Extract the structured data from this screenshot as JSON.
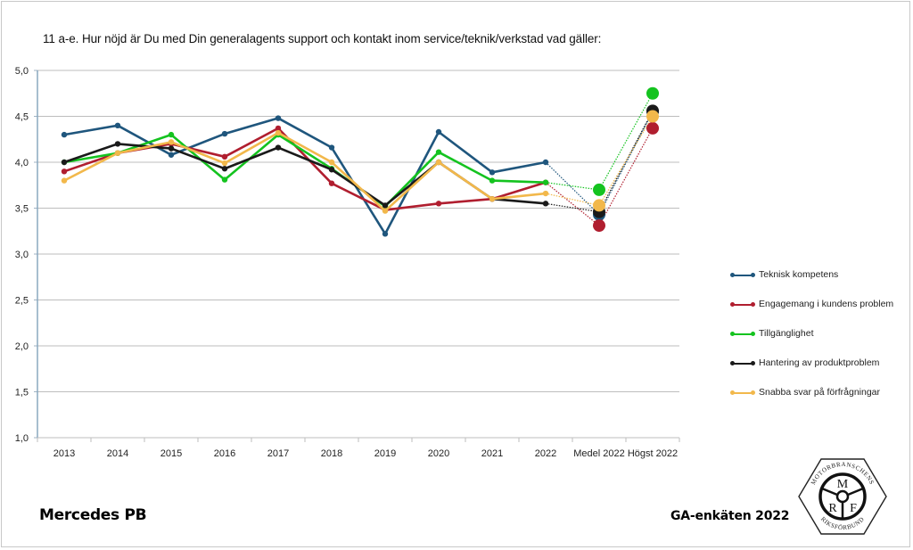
{
  "chart_data": {
    "type": "line",
    "title": "11 a-e. Hur nöjd är Du med Din generalagents support och kontakt inom service/teknik/verkstad vad gäller:",
    "xlabel": "",
    "ylabel": "",
    "ylim": [
      1.0,
      5.0
    ],
    "yticks": [
      "1,0",
      "1,5",
      "2,0",
      "2,5",
      "3,0",
      "3,5",
      "4,0",
      "4,5",
      "5,0"
    ],
    "ytick_values": [
      1.0,
      1.5,
      2.0,
      2.5,
      3.0,
      3.5,
      4.0,
      4.5,
      5.0
    ],
    "grid": "horizontal",
    "legend_position": "right",
    "categories": [
      "2013",
      "2014",
      "2015",
      "2016",
      "2017",
      "2018",
      "2019",
      "2020",
      "2021",
      "2022",
      "Medel 2022",
      "Högst 2022"
    ],
    "solid_categories": 10,
    "series": [
      {
        "name": "Teknisk kompetens",
        "color": "#1f567d",
        "values": [
          4.3,
          4.4,
          4.08,
          4.31,
          4.48,
          4.16,
          3.22,
          4.33,
          3.89,
          4.0,
          3.43,
          4.55
        ]
      },
      {
        "name": "Engagemang i kundens problem",
        "color": "#b01e2f",
        "values": [
          3.9,
          4.1,
          4.2,
          4.06,
          4.37,
          3.77,
          3.48,
          3.55,
          3.6,
          3.78,
          3.31,
          4.37
        ]
      },
      {
        "name": "Tillgänglighet",
        "color": "#14c31f",
        "values": [
          4.0,
          4.1,
          4.3,
          3.81,
          4.3,
          3.93,
          3.52,
          4.11,
          3.8,
          3.78,
          3.7,
          4.75
        ]
      },
      {
        "name": "Hantering av produktproblem",
        "color": "#1a1a1a",
        "values": [
          4.0,
          4.2,
          4.15,
          3.93,
          4.16,
          3.92,
          3.53,
          4.0,
          3.6,
          3.55,
          3.46,
          4.56
        ]
      },
      {
        "name": "Snabba svar på förfrågningar",
        "color": "#f2b84b",
        "values": [
          3.8,
          4.1,
          4.22,
          3.99,
          4.32,
          4.0,
          3.47,
          4.0,
          3.6,
          3.66,
          3.53,
          4.5
        ]
      }
    ]
  },
  "footer": {
    "brand": "Mercedes PB",
    "survey": "GA-enkäten 2022"
  },
  "logo": {
    "top_text": "MOTORBRANSCHENS",
    "bottom_text": "RIKSFÖRBUND",
    "letters": [
      "M",
      "R",
      "F"
    ]
  }
}
